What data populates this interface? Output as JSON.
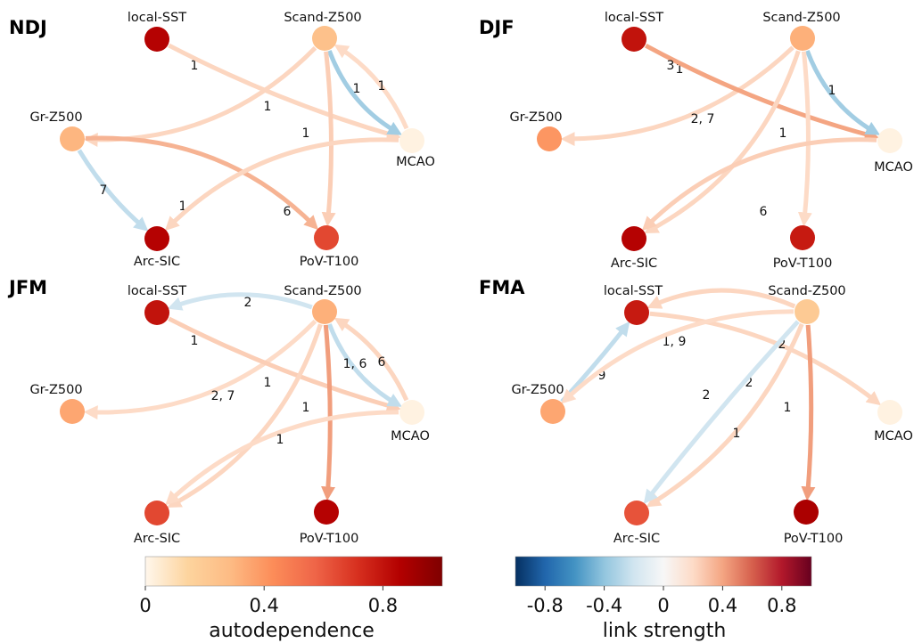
{
  "colormaps": {
    "autodependence": [
      "#fff7ec",
      "#fdd49e",
      "#fdbb84",
      "#fc8d59",
      "#ef6548",
      "#d7301f",
      "#b30000",
      "#7f0000"
    ],
    "link_strength": [
      "#053061",
      "#2166ac",
      "#4393c3",
      "#92c5de",
      "#d1e5f0",
      "#f7f7f7",
      "#fddbc7",
      "#f4a582",
      "#d6604d",
      "#b2182b",
      "#67001f"
    ]
  },
  "colorbars": {
    "autodependence": {
      "title": "autodependence",
      "range": [
        0,
        1.0
      ],
      "ticks": [
        {
          "value": 0,
          "label": "0"
        },
        {
          "value": 0.4,
          "label": "0.4"
        },
        {
          "value": 0.8,
          "label": "0.8"
        }
      ]
    },
    "link_strength": {
      "title": "link strength",
      "range": [
        -1.0,
        1.0
      ],
      "ticks": [
        {
          "value": -0.8,
          "label": "-0.8"
        },
        {
          "value": -0.4,
          "label": "-0.4"
        },
        {
          "value": 0,
          "label": "0"
        },
        {
          "value": 0.4,
          "label": "0.4"
        },
        {
          "value": 0.8,
          "label": "0.8"
        }
      ]
    }
  },
  "panels": [
    {
      "id": "ndj",
      "title": "NDJ",
      "nodes": [
        {
          "id": "local-SST",
          "label": "local-SST",
          "autodependence": 0.85
        },
        {
          "id": "Scand-Z500",
          "label": "Scand-Z500",
          "autodependence": 0.25
        },
        {
          "id": "Gr-Z500",
          "label": "Gr-Z500",
          "autodependence": 0.3
        },
        {
          "id": "MCAO",
          "label": "MCAO",
          "autodependence": 0.02
        },
        {
          "id": "Arc-SIC",
          "label": "Arc-SIC",
          "autodependence": 0.85
        },
        {
          "id": "PoV-T100",
          "label": "PoV-T100",
          "autodependence": 0.65
        }
      ],
      "links": [
        {
          "from": "Scand-Z500",
          "to": "Gr-Z500",
          "label": "1",
          "strength": 0.22
        },
        {
          "from": "local-SST",
          "to": "MCAO",
          "label": "1",
          "strength": 0.22
        },
        {
          "from": "Scand-Z500",
          "to": "MCAO",
          "label": "1",
          "strength": -0.35
        },
        {
          "from": "MCAO",
          "to": "Scand-Z500",
          "label": "1",
          "strength": 0.2
        },
        {
          "from": "Scand-Z500",
          "to": "PoV-T100",
          "label": "1",
          "strength": 0.25
        },
        {
          "from": "Gr-Z500",
          "to": "Arc-SIC",
          "label": "7",
          "strength": -0.25
        },
        {
          "from": "Gr-Z500",
          "to": "PoV-T100",
          "label": "1",
          "strength": 0.35
        },
        {
          "from": "MCAO",
          "to": "Arc-SIC",
          "label": "6",
          "strength": 0.22
        }
      ]
    },
    {
      "id": "djf",
      "title": "DJF",
      "nodes": [
        {
          "id": "local-SST",
          "label": "local-SST",
          "autodependence": 0.8
        },
        {
          "id": "Scand-Z500",
          "label": "Scand-Z500",
          "autodependence": 0.32
        },
        {
          "id": "Gr-Z500",
          "label": "Gr-Z500",
          "autodependence": 0.4
        },
        {
          "id": "MCAO",
          "label": "MCAO",
          "autodependence": 0.02
        },
        {
          "id": "Arc-SIC",
          "label": "Arc-SIC",
          "autodependence": 0.85
        },
        {
          "id": "PoV-T100",
          "label": "PoV-T100",
          "autodependence": 0.78
        }
      ],
      "links": [
        {
          "from": "Scand-Z500",
          "to": "Gr-Z500",
          "label": "1",
          "strength": 0.22
        },
        {
          "from": "local-SST",
          "to": "MCAO",
          "label": "3",
          "strength": 0.4
        },
        {
          "from": "Scand-Z500",
          "to": "MCAO",
          "label": "1",
          "strength": -0.35
        },
        {
          "from": "Scand-Z500",
          "to": "Arc-SIC",
          "label": "2, 7",
          "strength": 0.22
        },
        {
          "from": "Scand-Z500",
          "to": "PoV-T100",
          "label": "1",
          "strength": 0.2
        },
        {
          "from": "MCAO",
          "to": "Arc-SIC",
          "label": "6",
          "strength": 0.25
        }
      ]
    },
    {
      "id": "jfm",
      "title": "JFM",
      "nodes": [
        {
          "id": "local-SST",
          "label": "local-SST",
          "autodependence": 0.8
        },
        {
          "id": "Scand-Z500",
          "label": "Scand-Z500",
          "autodependence": 0.32
        },
        {
          "id": "Gr-Z500",
          "label": "Gr-Z500",
          "autodependence": 0.35
        },
        {
          "id": "MCAO",
          "label": "MCAO",
          "autodependence": 0.02
        },
        {
          "id": "Arc-SIC",
          "label": "Arc-SIC",
          "autodependence": 0.65
        },
        {
          "id": "PoV-T100",
          "label": "PoV-T100",
          "autodependence": 0.85
        }
      ],
      "links": [
        {
          "from": "Scand-Z500",
          "to": "local-SST",
          "label": "2",
          "strength": -0.2
        },
        {
          "from": "Scand-Z500",
          "to": "Gr-Z500",
          "label": "1",
          "strength": 0.2
        },
        {
          "from": "local-SST",
          "to": "MCAO",
          "label": "1",
          "strength": 0.25
        },
        {
          "from": "Scand-Z500",
          "to": "MCAO",
          "label": "1, 6",
          "strength": -0.25
        },
        {
          "from": "MCAO",
          "to": "Scand-Z500",
          "label": "6",
          "strength": 0.22
        },
        {
          "from": "Scand-Z500",
          "to": "Arc-SIC",
          "label": "2, 7",
          "strength": 0.22
        },
        {
          "from": "Scand-Z500",
          "to": "PoV-T100",
          "label": "1",
          "strength": 0.42
        },
        {
          "from": "MCAO",
          "to": "Arc-SIC",
          "label": "1",
          "strength": 0.2
        }
      ]
    },
    {
      "id": "fma",
      "title": "FMA",
      "nodes": [
        {
          "id": "local-SST",
          "label": "local-SST",
          "autodependence": 0.78
        },
        {
          "id": "Scand-Z500",
          "label": "Scand-Z500",
          "autodependence": 0.2
        },
        {
          "id": "Gr-Z500",
          "label": "Gr-Z500",
          "autodependence": 0.35
        },
        {
          "id": "MCAO",
          "label": "MCAO",
          "autodependence": 0.02
        },
        {
          "id": "Arc-SIC",
          "label": "Arc-SIC",
          "autodependence": 0.62
        },
        {
          "id": "PoV-T100",
          "label": "PoV-T100",
          "autodependence": 0.88
        }
      ],
      "links": [
        {
          "from": "Gr-Z500",
          "to": "local-SST",
          "label": "9",
          "strength": -0.25
        },
        {
          "from": "Scand-Z500",
          "to": "local-SST",
          "label": "1, 9",
          "strength": 0.22
        },
        {
          "from": "local-SST",
          "to": "MCAO",
          "label": "2",
          "strength": 0.22
        },
        {
          "from": "Scand-Z500",
          "to": "Gr-Z500",
          "label": "2",
          "strength": 0.2
        },
        {
          "from": "Scand-Z500",
          "to": "Arc-SIC",
          "label": "2",
          "strength": 0.22
        },
        {
          "from": "Scand-Z500",
          "to": "Arc-SIC",
          "label": "1",
          "strength": -0.2
        },
        {
          "from": "Scand-Z500",
          "to": "PoV-T100",
          "label": "1",
          "strength": 0.42
        }
      ]
    }
  ]
}
